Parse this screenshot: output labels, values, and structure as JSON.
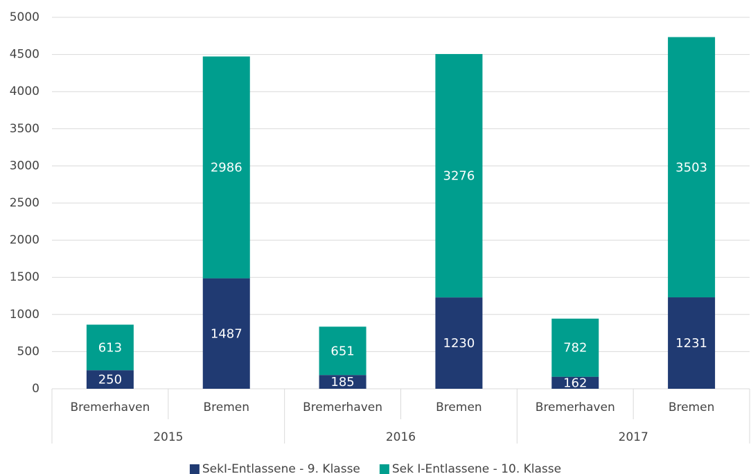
{
  "chart_data": {
    "type": "stacked_bar",
    "categories": [
      "Bremerhaven",
      "Bremen",
      "Bremerhaven",
      "Bremen",
      "Bremerhaven",
      "Bremen"
    ],
    "groups": [
      "2015",
      "2016",
      "2017"
    ],
    "series": [
      {
        "name": "SekI-Entlassene - 9. Klasse",
        "color": "#203a72",
        "values": [
          250,
          1487,
          185,
          1230,
          162,
          1231
        ]
      },
      {
        "name": "Sek I-Entlassene - 10. Klasse",
        "color": "#009e8e",
        "values": [
          613,
          2986,
          651,
          3276,
          782,
          3503
        ]
      }
    ],
    "ylim": [
      0,
      5000
    ],
    "yticks": [
      0,
      500,
      1000,
      1500,
      2000,
      2500,
      3000,
      3500,
      4000,
      4500,
      5000
    ],
    "grid": true,
    "legend": "bottom"
  }
}
